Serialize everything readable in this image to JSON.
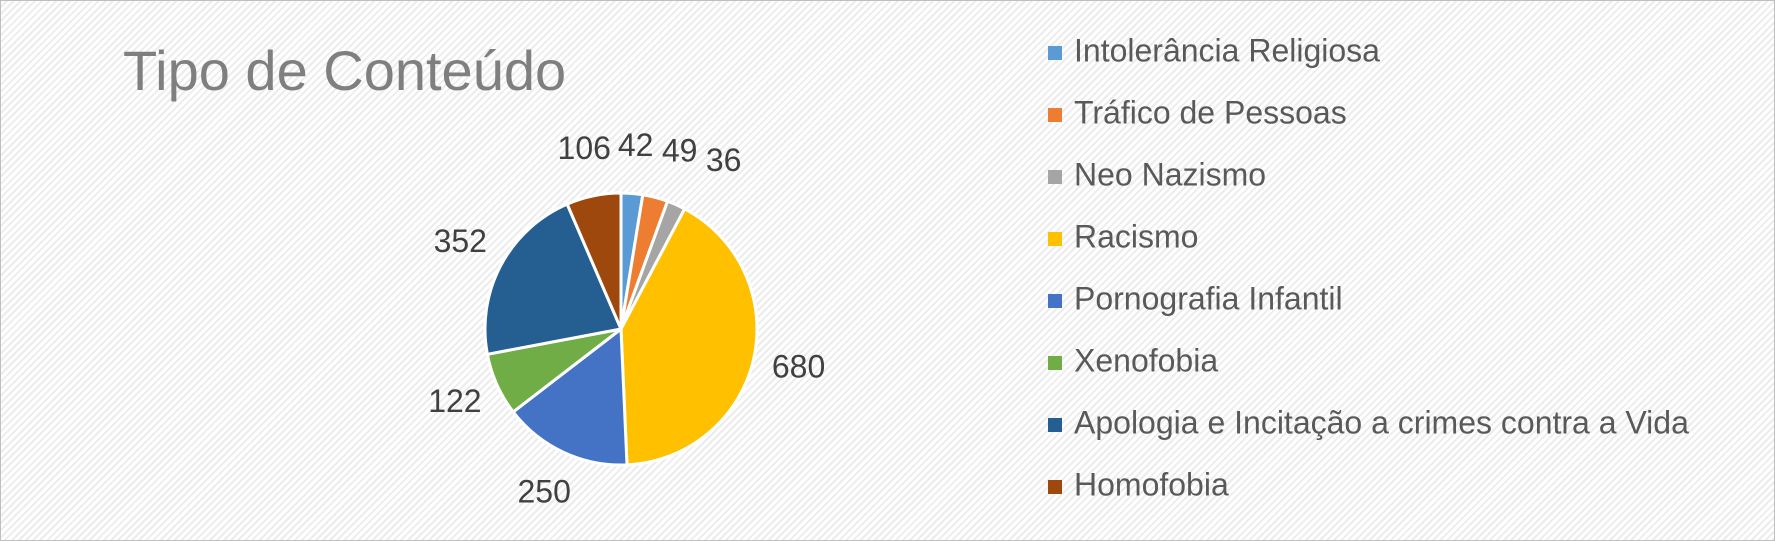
{
  "chart_data": {
    "type": "pie",
    "title": "Tipo de Conteúdo",
    "categories": [
      "Intolerância Religiosa",
      "Tráfico de Pessoas",
      "Neo Nazismo",
      "Racismo",
      "Pornografia Infantil",
      "Xenofobia",
      "Apologia e Incitação a crimes contra a Vida",
      "Homofobia"
    ],
    "values": [
      42,
      49,
      36,
      680,
      250,
      122,
      352,
      106
    ],
    "colors": [
      "#5b9bd5",
      "#ed7d31",
      "#a5a5a5",
      "#ffc000",
      "#4472c4",
      "#70ad47",
      "#255e91",
      "#9e480e"
    ],
    "legend": "right"
  }
}
